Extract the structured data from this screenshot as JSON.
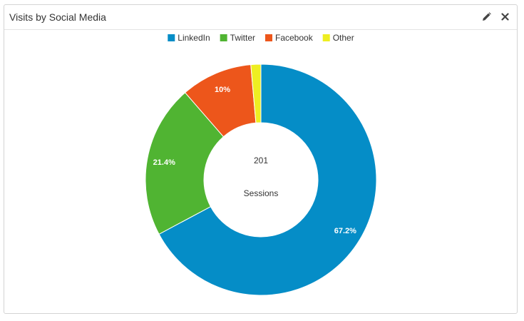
{
  "widget": {
    "title": "Visits by Social Media",
    "edit_icon": "pencil-icon",
    "close_icon": "close-icon"
  },
  "chart_data": {
    "type": "pie",
    "donut": true,
    "legend_position": "top",
    "center_value": "201",
    "center_label": "Sessions",
    "series": [
      {
        "name": "LinkedIn",
        "value": 67.2,
        "label": "67.2%",
        "color": "#058dc7"
      },
      {
        "name": "Twitter",
        "value": 21.4,
        "label": "21.4%",
        "color": "#50b432"
      },
      {
        "name": "Facebook",
        "value": 10.0,
        "label": "10%",
        "color": "#ed561b"
      },
      {
        "name": "Other",
        "value": 1.4,
        "label": "",
        "color": "#eeee22"
      }
    ]
  }
}
